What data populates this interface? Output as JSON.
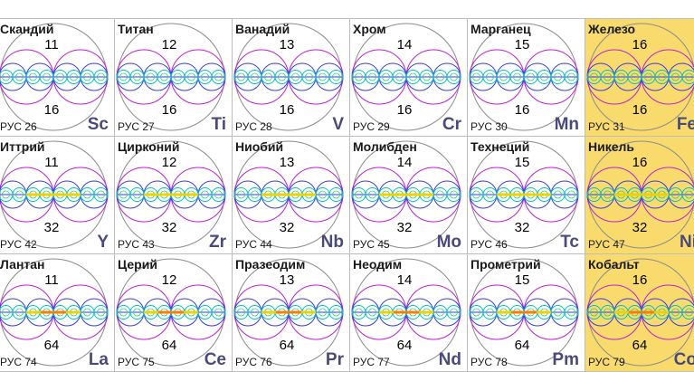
{
  "colors": {
    "highlight": "#f9db6d",
    "symbol": "#4a4a7a",
    "outer_circle": "#8c8c8c",
    "big_lobe": "#c020d0",
    "mid_ring": "#3a3ae0",
    "inner_ring": "#00c0c0",
    "line_core": "#f0d000",
    "line_core_heavy": "#ff7a00"
  },
  "rows": [
    [
      {
        "name": "Скандий",
        "top": "11",
        "bottom": "16",
        "code": "РУС 26",
        "symbol": "Sc",
        "highlight": false,
        "core": "plain"
      },
      {
        "name": "Титан",
        "top": "12",
        "bottom": "16",
        "code": "РУС 27",
        "symbol": "Ti",
        "highlight": false,
        "core": "plain"
      },
      {
        "name": "Ванадий",
        "top": "13",
        "bottom": "16",
        "code": "РУС 28",
        "symbol": "V",
        "highlight": false,
        "core": "plain"
      },
      {
        "name": "Хром",
        "top": "14",
        "bottom": "16",
        "code": "РУС 29",
        "symbol": "Cr",
        "highlight": false,
        "core": "plain"
      },
      {
        "name": "Марганец",
        "top": "15",
        "bottom": "16",
        "code": "РУС 30",
        "symbol": "Mn",
        "highlight": false,
        "core": "plain"
      },
      {
        "name": "Железо",
        "top": "16",
        "bottom": "16",
        "code": "РУС 31",
        "symbol": "Fe",
        "highlight": true,
        "core": "plain"
      }
    ],
    [
      {
        "name": "Иттрий",
        "top": "11",
        "bottom": "32",
        "code": "РУС 42",
        "symbol": "Y",
        "highlight": false,
        "core": "yellow"
      },
      {
        "name": "Цирконий",
        "top": "12",
        "bottom": "32",
        "code": "РУС 43",
        "symbol": "Zr",
        "highlight": false,
        "core": "yellow"
      },
      {
        "name": "Ниобий",
        "top": "13",
        "bottom": "32",
        "code": "РУС 44",
        "symbol": "Nb",
        "highlight": false,
        "core": "yellow"
      },
      {
        "name": "Молибден",
        "top": "14",
        "bottom": "32",
        "code": "РУС 45",
        "symbol": "Mo",
        "highlight": false,
        "core": "yellow"
      },
      {
        "name": "Технеций",
        "top": "15",
        "bottom": "32",
        "code": "РУС 46",
        "symbol": "Tc",
        "highlight": false,
        "core": "yellow"
      },
      {
        "name": "Никель",
        "top": "16",
        "bottom": "32",
        "code": "РУС 47",
        "symbol": "Ni",
        "highlight": true,
        "core": "yellow"
      }
    ],
    [
      {
        "name": "Лантан",
        "top": "11",
        "bottom": "64",
        "code": "РУС 74",
        "symbol": "La",
        "highlight": false,
        "core": "orange"
      },
      {
        "name": "Церий",
        "top": "12",
        "bottom": "64",
        "code": "РУС 75",
        "symbol": "Ce",
        "highlight": false,
        "core": "orange"
      },
      {
        "name": "Празеодим",
        "top": "13",
        "bottom": "64",
        "code": "РУС 76",
        "symbol": "Pr",
        "highlight": false,
        "core": "orange"
      },
      {
        "name": "Неодим",
        "top": "14",
        "bottom": "64",
        "code": "РУС 77",
        "symbol": "Nd",
        "highlight": false,
        "core": "orange"
      },
      {
        "name": "Прометрий",
        "top": "15",
        "bottom": "64",
        "code": "РУС 78",
        "symbol": "Pm",
        "highlight": false,
        "core": "orange"
      },
      {
        "name": "Кобальт",
        "top": "16",
        "bottom": "64",
        "code": "РУС 79",
        "symbol": "Co",
        "highlight": true,
        "core": "orange"
      }
    ]
  ]
}
